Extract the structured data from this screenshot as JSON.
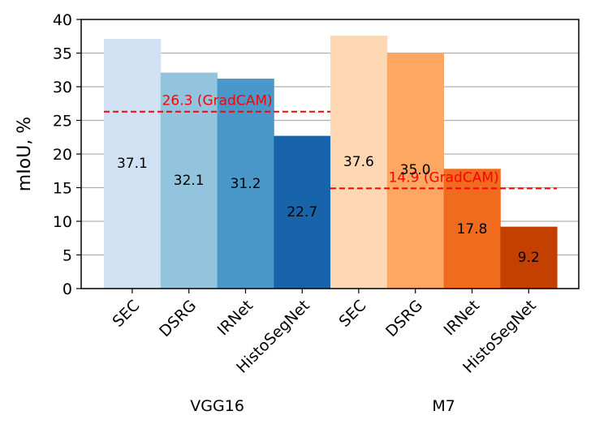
{
  "chart_data": {
    "type": "bar",
    "ylabel": "mIoU, %",
    "xlabel": "",
    "ylim": [
      0,
      40
    ],
    "yticks": [
      "0",
      "5",
      "10",
      "15",
      "20",
      "25",
      "30",
      "35",
      "40"
    ],
    "grid": "horizontal",
    "groups": [
      {
        "name": "VGG16",
        "categories": [
          "SEC",
          "DSRG",
          "IRNet",
          "HistoSegNet"
        ],
        "values": [
          37.1,
          32.1,
          31.2,
          22.7
        ],
        "value_labels": [
          "37.1",
          "32.1",
          "31.2",
          "22.7"
        ],
        "colors": [
          "#cfe1f2",
          "#93c4de",
          "#4a98c9",
          "#1764ab"
        ],
        "reference": {
          "value": 26.3,
          "label": "26.3 (GradCAM)",
          "color": "#ff0000"
        }
      },
      {
        "name": "M7",
        "categories": [
          "SEC",
          "DSRG",
          "IRNet",
          "HistoSegNet"
        ],
        "values": [
          37.6,
          35.0,
          17.8,
          9.2
        ],
        "value_labels": [
          "37.6",
          "35.0",
          "17.8",
          "9.2"
        ],
        "colors": [
          "#fdd8b2",
          "#fda762",
          "#f06b1d",
          "#c44001"
        ],
        "reference": {
          "value": 14.9,
          "label": "14.9 (GradCAM)",
          "color": "#ff0000"
        }
      }
    ]
  }
}
